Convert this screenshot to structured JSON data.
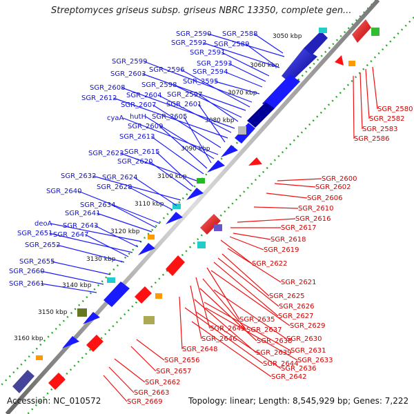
{
  "title": "Streptomyces griseus subsp. griseus NBRC 13350, complete gen...",
  "footer": {
    "accession": "Accession: NC_010572",
    "topology": "Topology: linear; Length: 8,545,929 bp; Genes: 7,222"
  },
  "colors": {
    "forward_gene": "#1a1aff",
    "reverse_gene": "#ff1111",
    "forward_label": "#1111cc",
    "reverse_label": "#cc0000",
    "backbone": "#888888",
    "dots": "#22aa22"
  },
  "scale_ticks": [
    {
      "label": "3050 kbp"
    },
    {
      "label": "3060 kbp"
    },
    {
      "label": "3070 kbp"
    },
    {
      "label": "3080 kbp"
    },
    {
      "label": "3090 kbp"
    },
    {
      "label": "3100 kbp"
    },
    {
      "label": "3110 kbp"
    },
    {
      "label": "3120 kbp"
    },
    {
      "label": "3130 kbp"
    },
    {
      "label": "3140 kbp"
    },
    {
      "label": "3150 kbp"
    },
    {
      "label": "3160 kbp"
    }
  ],
  "forward_labels": [
    "SGR_2590",
    "SGR_2588",
    "SGR_2592",
    "SGR_2589",
    "SGR_2591",
    "SGR_2593",
    "SGR_2594",
    "SGR_2595",
    "SGR_2599",
    "SGR_2596",
    "SGR_2603",
    "SGR_2598",
    "SGR_2597",
    "SGR_2608",
    "SGR_2604",
    "SGR_2612",
    "SGR_2601",
    "SGR_2607",
    "cyaA",
    "hutH",
    "SGR_2605",
    "SGR_2609",
    "SGR_2613",
    "SGR_2623",
    "SGR_2615",
    "SGR_2620",
    "SGR_2632",
    "SGR_2624",
    "SGR_2628",
    "SGR_2640",
    "SGR_2634",
    "SGR_2641",
    "deoA",
    "SGR_2643",
    "SGR_2651",
    "SGR_2647",
    "SGR_2652",
    "SGR_2655",
    "SGR_2660",
    "SGR_2661"
  ],
  "reverse_labels": [
    "SGR_2580",
    "SGR_2582",
    "SGR_2583",
    "SGR_2586",
    "SGR_2600",
    "SGR_2602",
    "SGR_2606",
    "SGR_2610",
    "SGR_2616",
    "SGR_2617",
    "SGR_2618",
    "SGR_2619",
    "SGR_2622",
    "SGR_2621",
    "SGR_2625",
    "SGR_2626",
    "SGR_2627",
    "SGR_2635",
    "SGR_2629",
    "SGR_2645",
    "SGR_2637",
    "SGR_2646",
    "SGR_2638",
    "SGR_2630",
    "SGR_2648",
    "SGR_2639",
    "SGR_2631",
    "SGR_2633",
    "SGR_2644",
    "SGR_2636",
    "SGR_2656",
    "SGR_2642",
    "SGR_2657",
    "SGR_2662",
    "SGR_2663",
    "SGR_2669"
  ]
}
